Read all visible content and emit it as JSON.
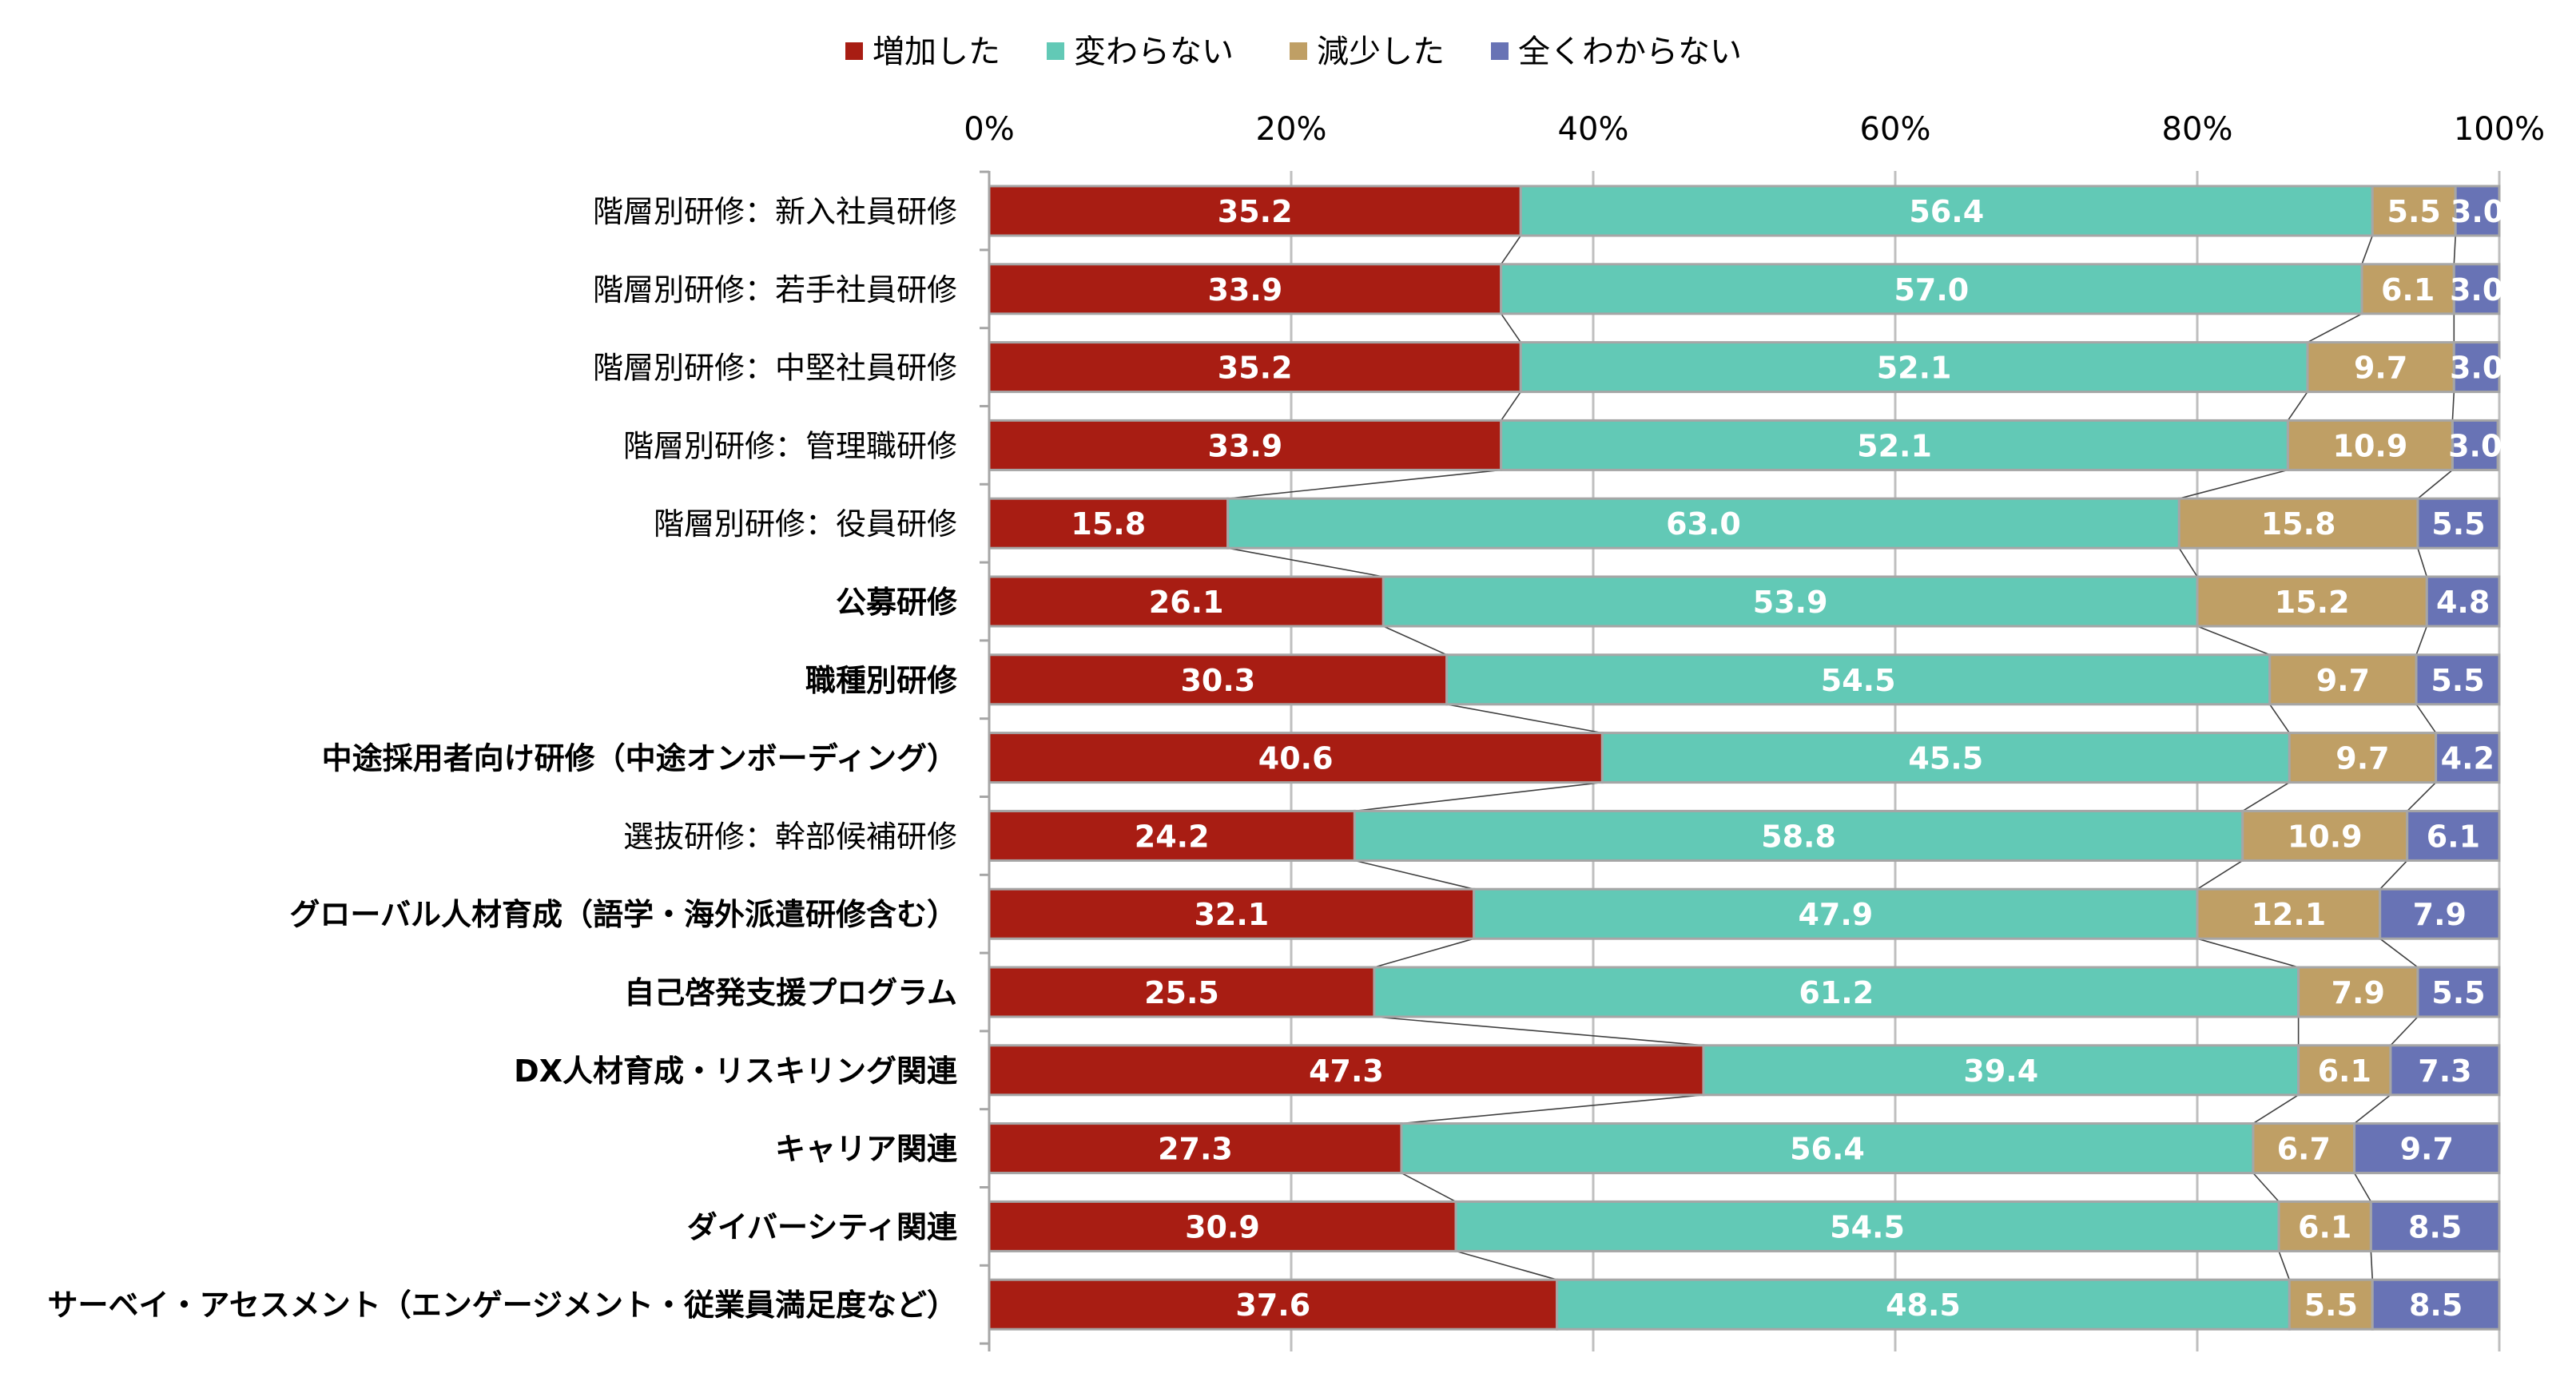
{
  "chart_data": {
    "type": "bar",
    "orientation": "horizontal",
    "stacked": "percent",
    "title": "",
    "xlabel": "",
    "ylabel": "",
    "xlim": [
      0,
      100
    ],
    "x_ticks": [
      "0%",
      "20%",
      "40%",
      "60%",
      "80%",
      "100%"
    ],
    "legend_position": "top-center",
    "categories": [
      "階層別研修：新入社員研修",
      "階層別研修：若手社員研修",
      "階層別研修：中堅社員研修",
      "階層別研修：管理職研修",
      "階層別研修：役員研修",
      "公募研修",
      "職種別研修",
      "中途採用者向け研修（中途オンボーディング）",
      "選抜研修：幹部候補研修",
      "グローバル人材育成（語学・海外派遣研修含む）",
      "自己啓発支援プログラム",
      "DX人材育成・リスキリング関連",
      "キャリア関連",
      "ダイバーシティ関連",
      "サーベイ・アセスメント（エンゲージメント・従業員満足度など）"
    ],
    "bold_categories": [
      false,
      false,
      false,
      false,
      false,
      true,
      true,
      true,
      false,
      true,
      true,
      true,
      true,
      true,
      true
    ],
    "series": [
      {
        "name": "増加した",
        "color": "#a81d13",
        "values": [
          35.2,
          33.9,
          35.2,
          33.9,
          15.8,
          26.1,
          30.3,
          40.6,
          24.2,
          32.1,
          25.5,
          47.3,
          27.3,
          30.9,
          37.6
        ]
      },
      {
        "name": "変わらない",
        "color": "#62c9b6",
        "values": [
          56.4,
          57.0,
          52.1,
          52.1,
          63.0,
          53.9,
          54.5,
          45.5,
          58.8,
          47.9,
          61.2,
          39.4,
          56.4,
          54.5,
          48.5
        ]
      },
      {
        "name": "減少した",
        "color": "#bf9f65",
        "values": [
          5.5,
          6.1,
          9.7,
          10.9,
          15.8,
          15.2,
          9.7,
          9.7,
          10.9,
          12.1,
          7.9,
          6.1,
          6.7,
          6.1,
          5.5
        ]
      },
      {
        "name": "全くわからない",
        "color": "#6873b5",
        "values": [
          3.0,
          3.0,
          3.0,
          3.0,
          5.5,
          4.8,
          5.5,
          4.2,
          6.1,
          7.9,
          5.5,
          7.3,
          9.7,
          8.5,
          8.5
        ]
      }
    ],
    "value_labels": [
      [
        "35.2",
        "56.4",
        "5.5",
        "3.0"
      ],
      [
        "33.9",
        "57.0",
        "6.1",
        "3.0"
      ],
      [
        "35.2",
        "52.1",
        "9.7",
        "3.0"
      ],
      [
        "33.9",
        "52.1",
        "10.9",
        "3.0"
      ],
      [
        "15.8",
        "63.0",
        "15.8",
        "5.5"
      ],
      [
        "26.1",
        "53.9",
        "15.2",
        "4.8"
      ],
      [
        "30.3",
        "54.5",
        "9.7",
        "5.5"
      ],
      [
        "40.6",
        "45.5",
        "9.7",
        "4.2"
      ],
      [
        "24.2",
        "58.8",
        "10.9",
        "6.1"
      ],
      [
        "32.1",
        "47.9",
        "12.1",
        "7.9"
      ],
      [
        "25.5",
        "61.2",
        "7.9",
        "5.5"
      ],
      [
        "47.3",
        "39.4",
        "6.1",
        "7.3"
      ],
      [
        "27.3",
        "56.4",
        "6.7",
        "9.7"
      ],
      [
        "30.9",
        "54.5",
        "6.1",
        "8.5"
      ],
      [
        "37.6",
        "48.5",
        "5.5",
        "8.5"
      ]
    ],
    "series_lines": true,
    "grid": true
  }
}
